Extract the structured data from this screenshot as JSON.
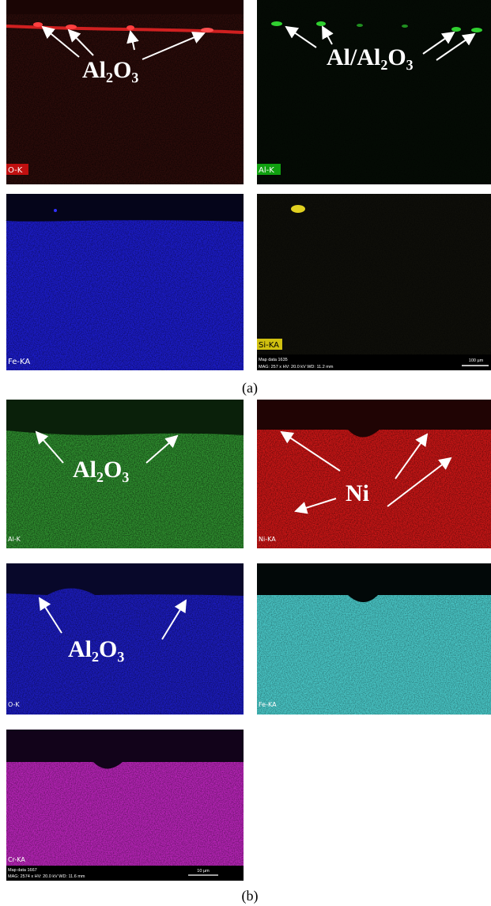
{
  "figure": {
    "part_a": {
      "label": "(a)",
      "panels": [
        {
          "element": "O-K",
          "annotation": "Al₂O₃"
        },
        {
          "element": "Al-K",
          "annotation": "Al/Al₂O₃"
        },
        {
          "element": "Fe-KA"
        },
        {
          "element": "Si-KA",
          "map_data": "Map data 1635",
          "settings": "MAG: 257 x  HV: 20.0 kV  WD: 11.2 mm",
          "scale_bar": "100 µm"
        }
      ]
    },
    "part_b": {
      "label": "(b)",
      "panels": [
        {
          "element": "Al-K",
          "annotation": "Al₂O₃"
        },
        {
          "element": "Ni-KA",
          "annotation": "Ni"
        },
        {
          "element": "O-K",
          "annotation": "Al₂O₃"
        },
        {
          "element": "Fe-KA"
        },
        {
          "element": "Cr-KA",
          "map_data": "Map data 1667",
          "settings": "MAG: 2574 x  HV: 20.0 kV  WD: 11.6 mm",
          "scale_bar": "10 µm"
        }
      ]
    }
  }
}
